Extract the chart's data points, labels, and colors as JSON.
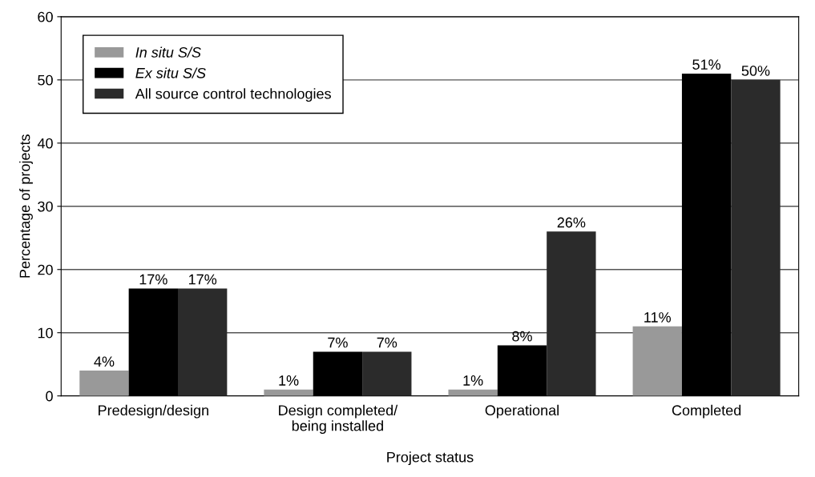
{
  "chart_data": {
    "type": "bar",
    "xlabel": "Project status",
    "ylabel": "Percentage of projects",
    "categories": [
      "Predesign/design",
      "Design completed/\nbeing installed",
      "Operational",
      "Completed"
    ],
    "series": [
      {
        "name": "In situ S/S",
        "color": "#999999",
        "values": [
          4,
          1,
          1,
          11
        ],
        "value_labels": [
          "4%",
          "1%",
          "1%",
          "11%"
        ]
      },
      {
        "name": "Ex situ S/S",
        "color": "#000000",
        "values": [
          17,
          7,
          8,
          51
        ],
        "value_labels": [
          "17%",
          "7%",
          "8%",
          "51%"
        ]
      },
      {
        "name": "All source control technologies",
        "color": "#2b2b2b",
        "values": [
          17,
          7,
          26,
          50
        ],
        "value_labels": [
          "17%",
          "7%",
          "26%",
          "50%"
        ]
      }
    ],
    "ylim": [
      0,
      60
    ],
    "yticks": [
      0,
      10,
      20,
      30,
      40,
      50,
      60
    ],
    "grid": "y",
    "legend": "top left"
  }
}
